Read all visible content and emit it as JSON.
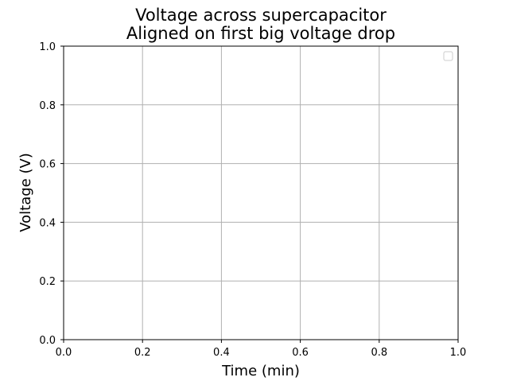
{
  "chart_data": {
    "type": "line",
    "title": [
      "Voltage across supercapacitor",
      "Aligned on first big voltage drop"
    ],
    "xlabel": "Time (min)",
    "ylabel": "Voltage (V)",
    "xlim": [
      0.0,
      1.0
    ],
    "ylim": [
      0.0,
      1.0
    ],
    "x_ticks": [
      0.0,
      0.2,
      0.4,
      0.6,
      0.8,
      1.0
    ],
    "y_ticks": [
      0.0,
      0.2,
      0.4,
      0.6,
      0.8,
      1.0
    ],
    "x_tick_labels": [
      "0.0",
      "0.2",
      "0.4",
      "0.6",
      "0.8",
      "1.0"
    ],
    "y_tick_labels": [
      "0.0",
      "0.2",
      "0.4",
      "0.6",
      "0.8",
      "1.0"
    ],
    "grid": true,
    "legend": {
      "placement": "top-right",
      "entries": []
    },
    "series": [],
    "colors": {
      "grid": "#b0b0b0",
      "axes": "#000000",
      "legend_border": "#cccccc",
      "background": "#ffffff"
    }
  }
}
